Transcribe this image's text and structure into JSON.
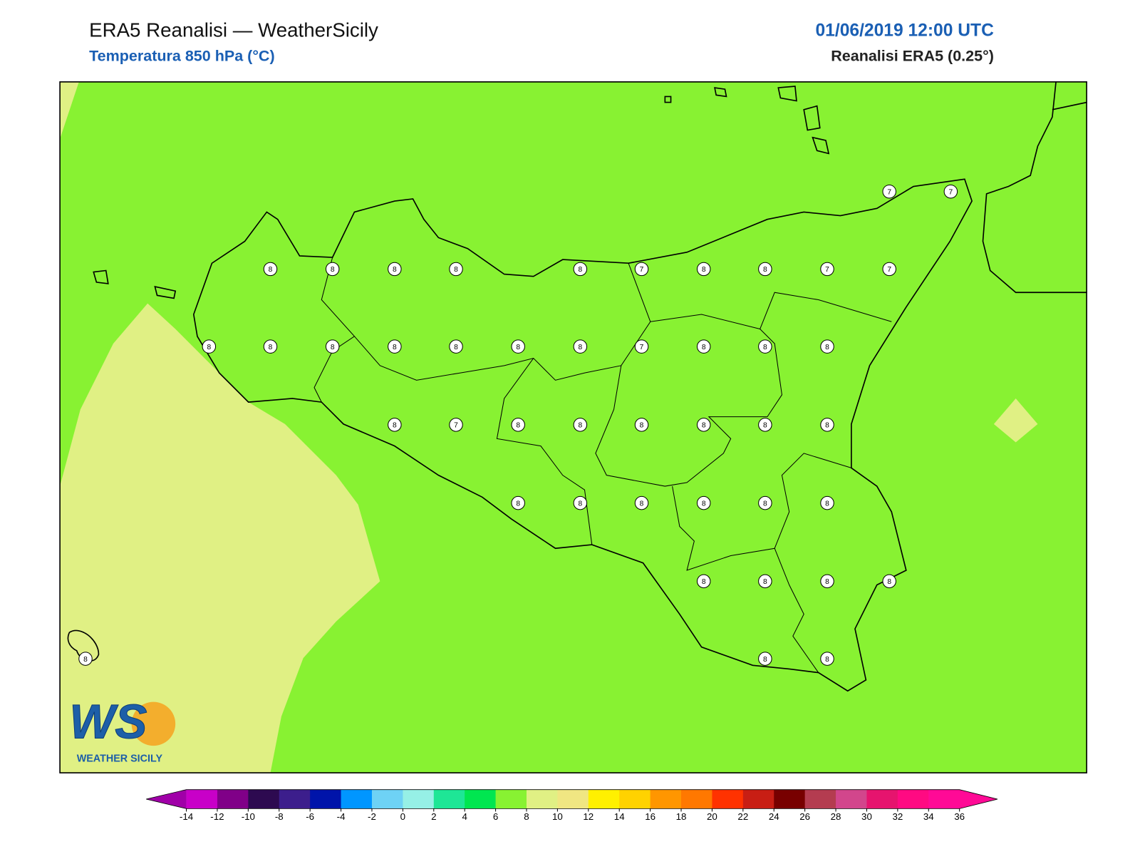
{
  "header": {
    "title": "ERA5 Reanalisi — WeatherSicily",
    "subtitle": "Temperatura 850 hPa (°C)",
    "datetime": "01/06/2019 12:00 UTC",
    "source": "Reanalisi ERA5 (0.25°)"
  },
  "points": [
    7,
    7,
    8,
    8,
    8,
    8,
    8,
    7,
    8,
    8,
    7,
    7,
    8,
    8,
    8,
    8,
    8,
    8,
    8,
    7,
    8,
    8,
    8,
    8,
    7,
    8,
    8,
    8,
    8,
    8,
    8,
    8,
    8,
    8,
    8,
    8,
    8,
    8,
    8,
    8,
    8,
    8,
    8,
    8
  ],
  "colorbar": {
    "ticks": [
      -14,
      -12,
      -10,
      -8,
      -6,
      -4,
      -2,
      0,
      2,
      4,
      6,
      8,
      10,
      12,
      14,
      16,
      18,
      20,
      22,
      24,
      26,
      28,
      30,
      32,
      34,
      36
    ],
    "colors": [
      "#a000a8",
      "#c800c8",
      "#800088",
      "#2d0a50",
      "#3c1e8c",
      "#0014aa",
      "#0096ff",
      "#6ed2f5",
      "#96f0e6",
      "#1ee696",
      "#00e650",
      "#88f232",
      "#e0f084",
      "#f0e682",
      "#fff000",
      "#ffd200",
      "#ff9600",
      "#ff7800",
      "#ff3200",
      "#c81e14",
      "#780000",
      "#b43c50",
      "#d2468c",
      "#e6146e",
      "#ff0a82",
      "#ff0a96",
      "#ff0a96"
    ]
  },
  "logo": {
    "mark": "WS",
    "name": "WEATHER SICILY"
  }
}
